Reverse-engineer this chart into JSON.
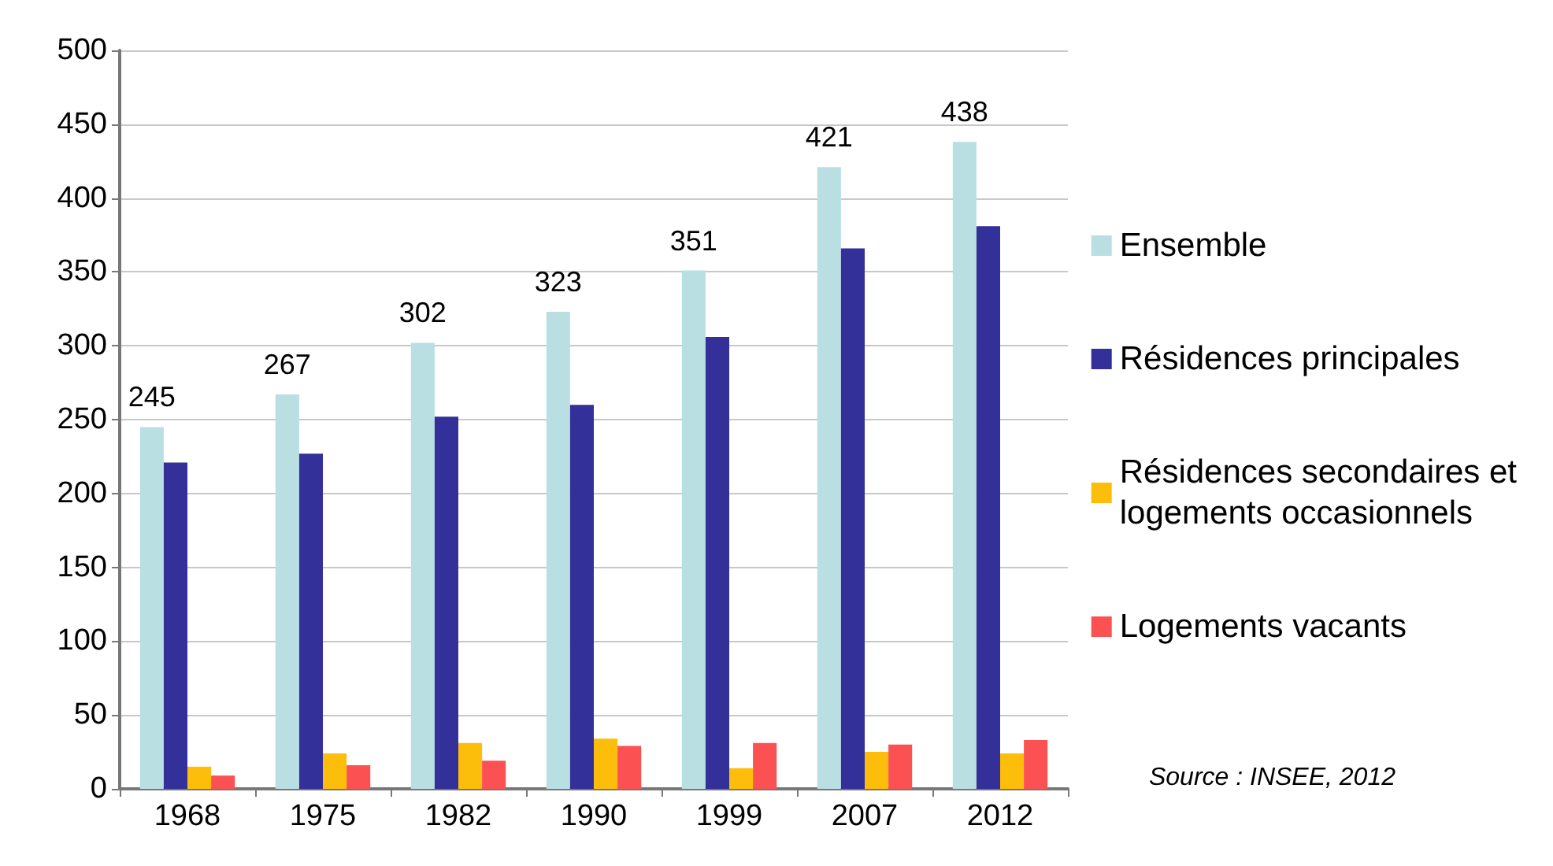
{
  "chart_data": {
    "type": "bar",
    "categories": [
      "1968",
      "1975",
      "1982",
      "1990",
      "1999",
      "2007",
      "2012"
    ],
    "series": [
      {
        "name": "Ensemble",
        "color": "#b9dfe3",
        "values": [
          245,
          267,
          302,
          323,
          351,
          421,
          438
        ],
        "value_labels": [
          "245",
          "267",
          "302",
          "323",
          "351",
          "421",
          "438"
        ]
      },
      {
        "name": "Résidences principales",
        "color": "#33309a",
        "values": [
          221,
          227,
          252,
          260,
          306,
          366,
          381
        ]
      },
      {
        "name": "Résidences secondaires et\nlogements occasionnels",
        "color": "#fdbd0b",
        "values": [
          15,
          24,
          31,
          34,
          14,
          25,
          24
        ]
      },
      {
        "name": "Logements vacants",
        "color": "#fc5152",
        "values": [
          9,
          16,
          19,
          29,
          31,
          30,
          33
        ]
      }
    ],
    "ylim": [
      0,
      500
    ],
    "yticks": [
      0,
      50,
      100,
      150,
      200,
      250,
      300,
      350,
      400,
      450,
      500
    ],
    "grid": "y",
    "legend": "right",
    "annotations": [
      "Source : INSEE, 2012"
    ]
  }
}
